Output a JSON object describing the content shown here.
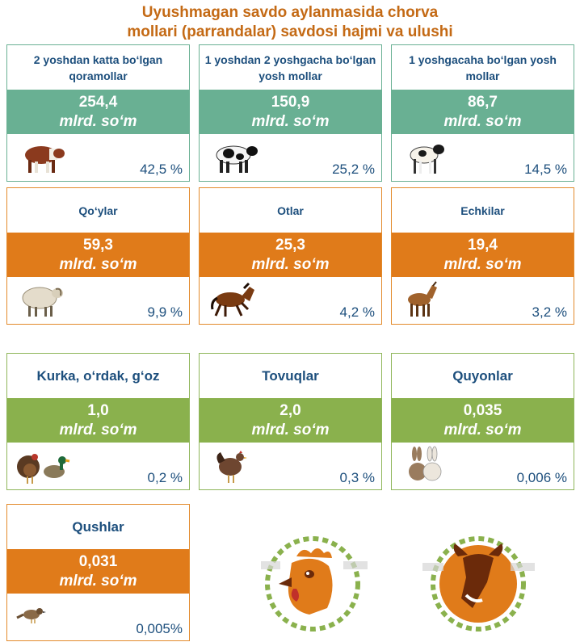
{
  "title": "Uyushmagan savdo aylanmasida chorva\nmollari (parrandalar) savdosi hajmi va ulushi",
  "title_lines": [
    "Uyushmagan savdo aylanmasida chorva",
    "mollari (parrandalar) savdosi hajmi va ulushi"
  ],
  "colors": {
    "title": "#c46a15",
    "green": "#69b093",
    "orange": "#e07b1a",
    "olive": "#8ab14d",
    "label": "#1d4f7d"
  },
  "cards": [
    {
      "label": "2 yoshdan katta bo‘lgan qoramollar",
      "value": "254,4",
      "unit": "mlrd. so‘m",
      "share": "42,5 %",
      "icon": "bull-icon"
    },
    {
      "label": "1 yoshdan 2 yoshgacha bo‘lgan yosh mollar",
      "value": "150,9",
      "unit": "mlrd. so‘m",
      "share": "25,2 %",
      "icon": "cow-icon"
    },
    {
      "label": "1 yoshgacaha bo‘lgan yosh mollar",
      "value": "86,7",
      "unit": "mlrd. so‘m",
      "share": "14,5 %",
      "icon": "calf-icon"
    },
    {
      "label": "Qo‘ylar",
      "value": "59,3",
      "unit": "mlrd. so‘m",
      "share": "9,9 %",
      "icon": "sheep-icon"
    },
    {
      "label": "Otlar",
      "value": "25,3",
      "unit": "mlrd. so‘m",
      "share": "4,2 %",
      "icon": "horse-icon"
    },
    {
      "label": "Echkilar",
      "value": "19,4",
      "unit": "mlrd. so‘m",
      "share": "3,2 %",
      "icon": "goat-icon"
    },
    {
      "label": "Kurka, o‘rdak, g‘oz",
      "value": "1,0",
      "unit": "mlrd. so‘m",
      "share": "0,2 %",
      "icon": "turkey-duck-icon"
    },
    {
      "label": "Tovuqlar",
      "value": "2,0",
      "unit": "mlrd. so‘m",
      "share": "0,3 %",
      "icon": "hen-icon"
    },
    {
      "label": "Quyonlar",
      "value": "0,035",
      "unit": "mlrd. so‘m",
      "share": "0,006 %",
      "icon": "rabbit-icon"
    },
    {
      "label": "Qushlar",
      "value": "0,031",
      "unit": "mlrd. so‘m",
      "share": "0,005%",
      "icon": "bird-icon"
    }
  ],
  "emblems": [
    "rooster-emblem-icon",
    "bull-emblem-icon"
  ]
}
